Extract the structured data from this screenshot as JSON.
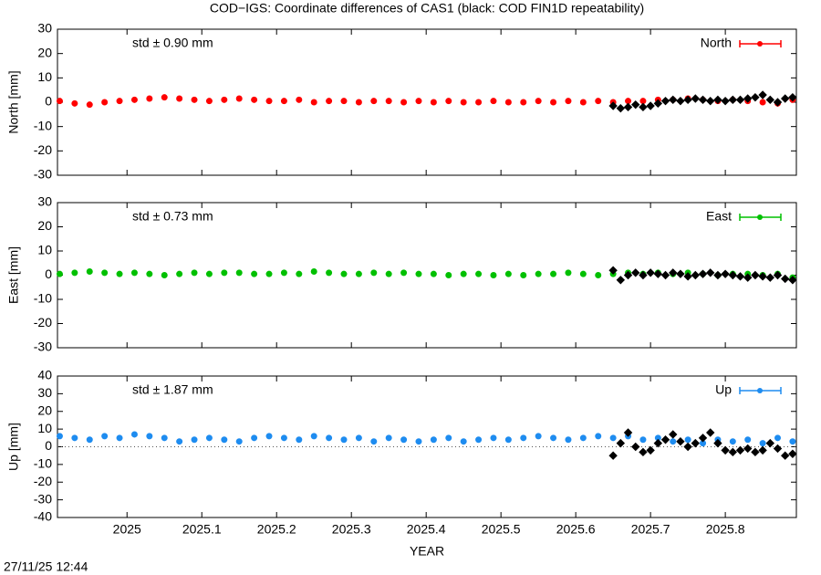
{
  "title": "COD−IGS: Coordinate differences of CAS1 (black: COD FIN1D repeatability)",
  "timestamp": "27/11/25 12:44",
  "chart_data": [
    {
      "type": "scatter",
      "ylabel": "North [mm]",
      "annotation": "std ± 0.90 mm",
      "annotation_color": "#ff0000",
      "legend": "top-right",
      "xlim": [
        2024.907,
        2025.895
      ],
      "xticks": [
        2025,
        2025.1,
        2025.2,
        2025.3,
        2025.4,
        2025.5,
        2025.6,
        2025.7,
        2025.8
      ],
      "ylim": [
        -30,
        30
      ],
      "yticks": [
        -30,
        -20,
        -10,
        0,
        10,
        20,
        30
      ],
      "series": [
        {
          "name": "North",
          "color": "#ff0000",
          "marker": "circle",
          "x": [
            2024.91,
            2024.93,
            2024.95,
            2024.97,
            2024.99,
            2025.01,
            2025.03,
            2025.05,
            2025.07,
            2025.09,
            2025.11,
            2025.13,
            2025.15,
            2025.17,
            2025.19,
            2025.21,
            2025.23,
            2025.25,
            2025.27,
            2025.29,
            2025.31,
            2025.33,
            2025.35,
            2025.37,
            2025.39,
            2025.41,
            2025.43,
            2025.45,
            2025.47,
            2025.49,
            2025.51,
            2025.53,
            2025.55,
            2025.57,
            2025.59,
            2025.61,
            2025.63,
            2025.65,
            2025.67,
            2025.69,
            2025.71,
            2025.73,
            2025.75,
            2025.77,
            2025.79,
            2025.81,
            2025.83,
            2025.85,
            2025.87,
            2025.89
          ],
          "values": [
            0.5,
            -0.5,
            -1,
            0,
            0.5,
            1,
            1.5,
            2,
            1.5,
            1,
            0.5,
            1,
            1.5,
            1,
            0.5,
            0.5,
            1,
            0,
            0.5,
            0.5,
            0,
            0.5,
            0.5,
            0,
            0.5,
            0,
            0.5,
            0,
            0,
            0.5,
            0,
            0,
            0.5,
            0,
            0.5,
            0,
            0.5,
            0,
            0.5,
            0.5,
            1,
            1,
            1.5,
            1,
            0.5,
            1,
            0.5,
            0,
            -0.5,
            1
          ]
        },
        {
          "color": "#000000",
          "marker": "diamond",
          "x": [
            2025.65,
            2025.66,
            2025.67,
            2025.68,
            2025.69,
            2025.7,
            2025.71,
            2025.72,
            2025.73,
            2025.74,
            2025.75,
            2025.76,
            2025.77,
            2025.78,
            2025.79,
            2025.8,
            2025.81,
            2025.82,
            2025.83,
            2025.84,
            2025.85,
            2025.86,
            2025.87,
            2025.88,
            2025.89
          ],
          "values": [
            -1.5,
            -2.5,
            -2,
            -1,
            -2,
            -1.5,
            -0.5,
            0.5,
            1,
            0.5,
            1,
            1.5,
            1,
            0.5,
            1,
            0.5,
            1,
            1,
            1.5,
            2,
            3,
            1,
            0,
            1.5,
            2
          ]
        }
      ]
    },
    {
      "type": "scatter",
      "ylabel": "East [mm]",
      "annotation": "std ± 0.73 mm",
      "annotation_color": "#00c000",
      "legend": "top-right",
      "xlim": [
        2024.907,
        2025.895
      ],
      "xticks": [
        2025,
        2025.1,
        2025.2,
        2025.3,
        2025.4,
        2025.5,
        2025.6,
        2025.7,
        2025.8
      ],
      "ylim": [
        -30,
        30
      ],
      "yticks": [
        -30,
        -20,
        -10,
        0,
        10,
        20,
        30
      ],
      "series": [
        {
          "name": "East",
          "color": "#00c000",
          "marker": "circle",
          "x": [
            2024.91,
            2024.93,
            2024.95,
            2024.97,
            2024.99,
            2025.01,
            2025.03,
            2025.05,
            2025.07,
            2025.09,
            2025.11,
            2025.13,
            2025.15,
            2025.17,
            2025.19,
            2025.21,
            2025.23,
            2025.25,
            2025.27,
            2025.29,
            2025.31,
            2025.33,
            2025.35,
            2025.37,
            2025.39,
            2025.41,
            2025.43,
            2025.45,
            2025.47,
            2025.49,
            2025.51,
            2025.53,
            2025.55,
            2025.57,
            2025.59,
            2025.61,
            2025.63,
            2025.65,
            2025.67,
            2025.69,
            2025.71,
            2025.73,
            2025.75,
            2025.77,
            2025.79,
            2025.81,
            2025.83,
            2025.85,
            2025.87,
            2025.89
          ],
          "values": [
            0.5,
            1,
            1.5,
            1,
            0.5,
            1,
            0.5,
            0,
            0.5,
            1,
            0.5,
            1,
            1,
            0.5,
            0.5,
            1,
            0.5,
            1.5,
            1,
            0.5,
            0.5,
            1,
            0.5,
            1,
            0.5,
            0.5,
            0,
            0.5,
            0.5,
            0,
            0.5,
            0,
            0.5,
            0.5,
            1,
            0.5,
            0,
            0.5,
            1,
            0.5,
            1,
            0.5,
            1,
            0.5,
            0,
            0.5,
            0.5,
            0,
            0.5,
            -1
          ]
        },
        {
          "color": "#000000",
          "marker": "diamond",
          "x": [
            2025.65,
            2025.66,
            2025.67,
            2025.68,
            2025.69,
            2025.7,
            2025.71,
            2025.72,
            2025.73,
            2025.74,
            2025.75,
            2025.76,
            2025.77,
            2025.78,
            2025.79,
            2025.8,
            2025.81,
            2025.82,
            2025.83,
            2025.84,
            2025.85,
            2025.86,
            2025.87,
            2025.88,
            2025.89
          ],
          "values": [
            2,
            -2,
            0,
            1,
            0,
            1,
            0.5,
            0,
            1,
            0.5,
            -0.5,
            0,
            0.5,
            1,
            0,
            0.5,
            0,
            -0.5,
            -1,
            0,
            -0.5,
            -1,
            0,
            -1.5,
            -2
          ]
        }
      ]
    },
    {
      "type": "scatter",
      "ylabel": "Up [mm]",
      "xlabel": "YEAR",
      "annotation": "std ± 1.87 mm",
      "annotation_color": "#1e8cf0",
      "legend": "top-right",
      "xlim": [
        2024.907,
        2025.895
      ],
      "xticks": [
        2025,
        2025.1,
        2025.2,
        2025.3,
        2025.4,
        2025.5,
        2025.6,
        2025.7,
        2025.8
      ],
      "ylim": [
        -40,
        40
      ],
      "yticks": [
        -40,
        -30,
        -20,
        -10,
        0,
        10,
        20,
        30,
        40
      ],
      "hline": 0,
      "series": [
        {
          "name": "Up",
          "color": "#1e8cf0",
          "marker": "circle",
          "x": [
            2024.91,
            2024.93,
            2024.95,
            2024.97,
            2024.99,
            2025.01,
            2025.03,
            2025.05,
            2025.07,
            2025.09,
            2025.11,
            2025.13,
            2025.15,
            2025.17,
            2025.19,
            2025.21,
            2025.23,
            2025.25,
            2025.27,
            2025.29,
            2025.31,
            2025.33,
            2025.35,
            2025.37,
            2025.39,
            2025.41,
            2025.43,
            2025.45,
            2025.47,
            2025.49,
            2025.51,
            2025.53,
            2025.55,
            2025.57,
            2025.59,
            2025.61,
            2025.63,
            2025.65,
            2025.67,
            2025.69,
            2025.71,
            2025.73,
            2025.75,
            2025.77,
            2025.79,
            2025.81,
            2025.83,
            2025.85,
            2025.87,
            2025.89
          ],
          "values": [
            6,
            5,
            4,
            6,
            5,
            7,
            6,
            5,
            3,
            4,
            5,
            4,
            3,
            5,
            6,
            5,
            4,
            6,
            5,
            4,
            5,
            3,
            5,
            4,
            3,
            4,
            5,
            3,
            4,
            5,
            4,
            5,
            6,
            5,
            4,
            5,
            6,
            5,
            6,
            4,
            5,
            3,
            4,
            2,
            4,
            3,
            4,
            2,
            5,
            3
          ]
        },
        {
          "color": "#000000",
          "marker": "diamond",
          "x": [
            2025.65,
            2025.66,
            2025.67,
            2025.68,
            2025.69,
            2025.7,
            2025.71,
            2025.72,
            2025.73,
            2025.74,
            2025.75,
            2025.76,
            2025.77,
            2025.78,
            2025.79,
            2025.8,
            2025.81,
            2025.82,
            2025.83,
            2025.84,
            2025.85,
            2025.86,
            2025.87,
            2025.88,
            2025.89
          ],
          "values": [
            -5,
            2,
            8,
            0,
            -3,
            -2,
            2,
            4,
            7,
            3,
            0,
            2,
            5,
            8,
            2,
            -2,
            -3,
            -2,
            -1,
            -3,
            -2,
            2,
            -1,
            -5,
            -4
          ]
        }
      ]
    }
  ]
}
